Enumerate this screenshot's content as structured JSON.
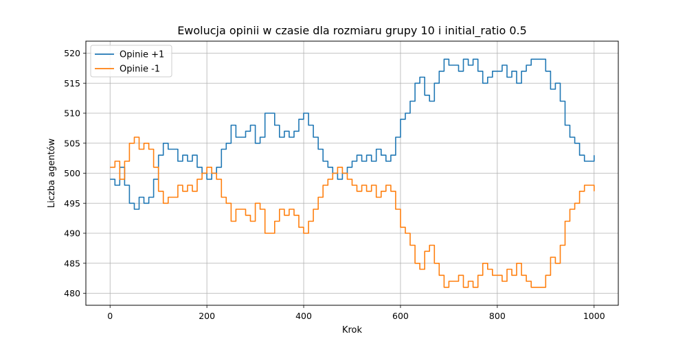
{
  "chart_data": {
    "type": "line",
    "title": "Ewolucja opinii w czasie dla rozmiaru grupy 10 i initial_ratio 0.5",
    "xlabel": "Krok",
    "ylabel": "Liczba agentów",
    "xlim": [
      -50,
      1050
    ],
    "ylim": [
      478,
      522
    ],
    "xticks": [
      0,
      200,
      400,
      600,
      800,
      1000
    ],
    "yticks": [
      480,
      485,
      490,
      495,
      500,
      505,
      510,
      515,
      520
    ],
    "grid": true,
    "legend_position": "top-left",
    "series": [
      {
        "name": "Opinie +1",
        "color": "#1f77b4",
        "x": [
          0,
          10,
          20,
          30,
          40,
          50,
          60,
          70,
          80,
          90,
          100,
          110,
          120,
          130,
          140,
          150,
          160,
          170,
          180,
          190,
          200,
          210,
          220,
          230,
          240,
          250,
          260,
          270,
          280,
          290,
          300,
          310,
          320,
          330,
          340,
          350,
          360,
          370,
          380,
          390,
          400,
          410,
          420,
          430,
          440,
          450,
          460,
          470,
          480,
          490,
          500,
          510,
          520,
          530,
          540,
          550,
          560,
          570,
          580,
          590,
          600,
          610,
          620,
          630,
          640,
          650,
          660,
          670,
          680,
          690,
          700,
          710,
          720,
          730,
          740,
          750,
          760,
          770,
          780,
          790,
          800,
          810,
          820,
          830,
          840,
          850,
          860,
          870,
          880,
          890,
          900,
          910,
          920,
          930,
          940,
          950,
          960,
          970,
          980,
          990,
          1000
        ],
        "values": [
          499,
          498,
          501,
          498,
          495,
          494,
          496,
          495,
          496,
          499,
          503,
          505,
          504,
          504,
          502,
          503,
          502,
          503,
          501,
          500,
          499,
          500,
          501,
          504,
          505,
          508,
          506,
          506,
          507,
          508,
          505,
          506,
          510,
          510,
          508,
          506,
          507,
          506,
          507,
          509,
          510,
          508,
          506,
          504,
          502,
          501,
          500,
          499,
          500,
          501,
          502,
          503,
          502,
          503,
          502,
          504,
          503,
          502,
          503,
          506,
          509,
          510,
          512,
          515,
          516,
          513,
          512,
          515,
          517,
          519,
          518,
          518,
          517,
          519,
          518,
          519,
          517,
          515,
          516,
          517,
          517,
          518,
          516,
          517,
          515,
          517,
          518,
          519,
          519,
          519,
          517,
          514,
          515,
          512,
          508,
          506,
          505,
          503,
          502,
          502,
          503
        ]
      },
      {
        "name": "Opinie -1",
        "color": "#ff7f0e",
        "x": [
          0,
          10,
          20,
          30,
          40,
          50,
          60,
          70,
          80,
          90,
          100,
          110,
          120,
          130,
          140,
          150,
          160,
          170,
          180,
          190,
          200,
          210,
          220,
          230,
          240,
          250,
          260,
          270,
          280,
          290,
          300,
          310,
          320,
          330,
          340,
          350,
          360,
          370,
          380,
          390,
          400,
          410,
          420,
          430,
          440,
          450,
          460,
          470,
          480,
          490,
          500,
          510,
          520,
          530,
          540,
          550,
          560,
          570,
          580,
          590,
          600,
          610,
          620,
          630,
          640,
          650,
          660,
          670,
          680,
          690,
          700,
          710,
          720,
          730,
          740,
          750,
          760,
          770,
          780,
          790,
          800,
          810,
          820,
          830,
          840,
          850,
          860,
          870,
          880,
          890,
          900,
          910,
          920,
          930,
          940,
          950,
          960,
          970,
          980,
          990,
          1000
        ],
        "values": [
          501,
          502,
          499,
          502,
          505,
          506,
          504,
          505,
          504,
          501,
          497,
          495,
          496,
          496,
          498,
          497,
          498,
          497,
          499,
          500,
          501,
          500,
          499,
          496,
          495,
          492,
          494,
          494,
          493,
          492,
          495,
          494,
          490,
          490,
          492,
          494,
          493,
          494,
          493,
          491,
          490,
          492,
          494,
          496,
          498,
          499,
          500,
          501,
          500,
          499,
          498,
          497,
          498,
          497,
          498,
          496,
          497,
          498,
          497,
          494,
          491,
          490,
          488,
          485,
          484,
          487,
          488,
          485,
          483,
          481,
          482,
          482,
          483,
          481,
          482,
          481,
          483,
          485,
          484,
          483,
          483,
          482,
          484,
          483,
          485,
          483,
          482,
          481,
          481,
          481,
          483,
          486,
          485,
          488,
          492,
          494,
          495,
          497,
          498,
          498,
          497
        ]
      }
    ]
  }
}
